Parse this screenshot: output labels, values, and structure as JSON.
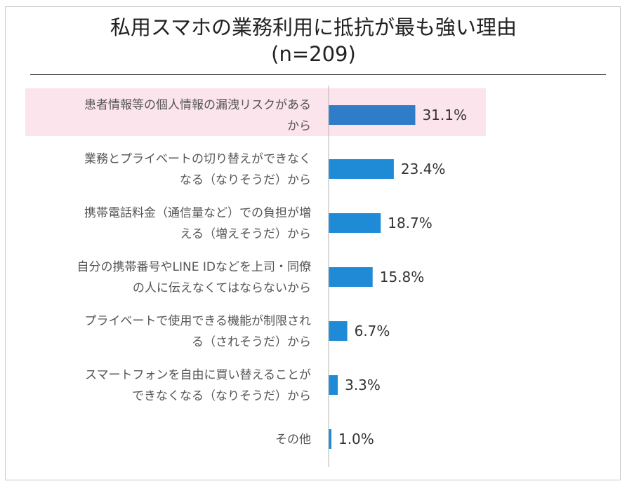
{
  "chart_data": {
    "type": "bar",
    "orientation": "horizontal",
    "title": "私用スマホの業務利用に抵抗が最も強い理由",
    "subtitle": "(n=209)",
    "categories": [
      [
        "患者情報等の個人情報の漏洩リスクがある",
        "から"
      ],
      [
        "業務とプライベートの切り替えができなく",
        "なる（なりそうだ）から"
      ],
      [
        "携帯電話料金（通信量など）での負担が増",
        "える（増えそうだ）から"
      ],
      [
        "自分の携帯番号やLINE IDなどを上司・同僚",
        "の人に伝えなくてはならないから"
      ],
      [
        "プライベートで使用できる機能が制限され",
        "る（されそうだ）から"
      ],
      [
        "スマートフォンを自由に買い替えることが",
        "できなくなる（なりそうだ）から"
      ],
      [
        "その他"
      ]
    ],
    "values": [
      31.1,
      23.4,
      18.7,
      15.8,
      6.7,
      3.3,
      1.0
    ],
    "value_labels": [
      "31.1%",
      "23.4%",
      "18.7%",
      "15.8%",
      "6.7%",
      "3.3%",
      "1.0%"
    ],
    "highlighted_index": 0,
    "colors": {
      "bar": "#1f8ad6",
      "highlight_bar": "#2f7cc9",
      "highlight_band": "#fbe4ec",
      "axis": "#b5b5b5"
    }
  }
}
